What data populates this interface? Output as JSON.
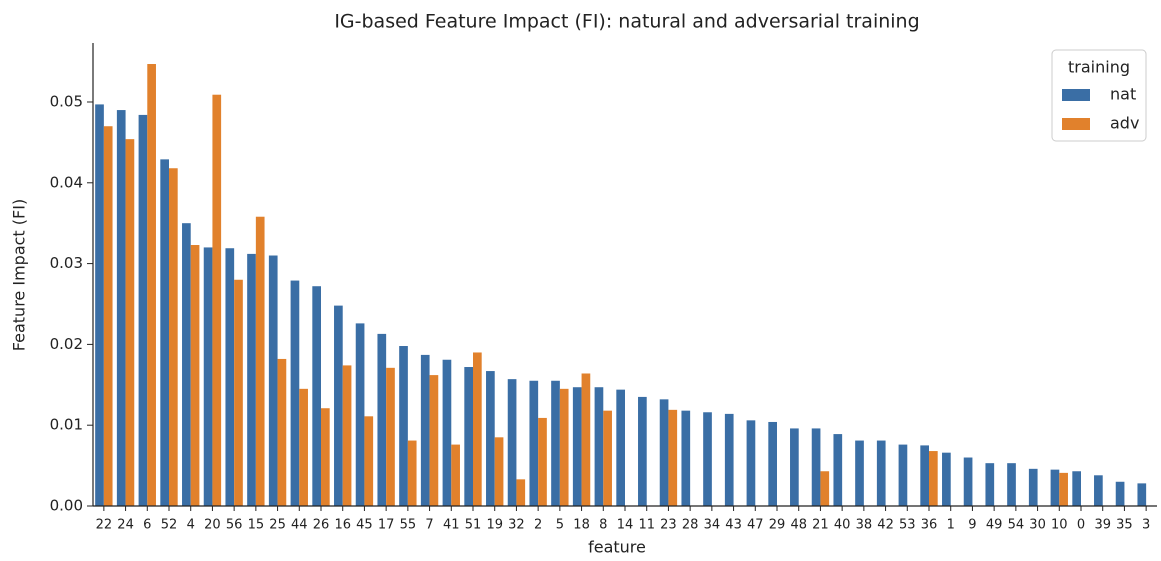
{
  "chart_data": {
    "type": "bar",
    "title": "IG-based Feature Impact (FI): natural and adversarial training",
    "x_label": "feature",
    "y_label": "Feature Impact (FI)",
    "legend_title": "training",
    "legend": "upper right",
    "categories": [
      "22",
      "24",
      "6",
      "52",
      "4",
      "20",
      "56",
      "15",
      "25",
      "44",
      "26",
      "16",
      "45",
      "17",
      "55",
      "7",
      "41",
      "51",
      "19",
      "32",
      "2",
      "5",
      "18",
      "8",
      "14",
      "11",
      "23",
      "28",
      "34",
      "43",
      "47",
      "29",
      "48",
      "21",
      "40",
      "38",
      "42",
      "53",
      "36",
      "1",
      "9",
      "49",
      "54",
      "30",
      "10",
      "0",
      "39",
      "35",
      "3"
    ],
    "series": [
      {
        "name": "nat",
        "color": "#3a6ea5",
        "values": [
          0.0497,
          0.049,
          0.0484,
          0.0429,
          0.035,
          0.032,
          0.0319,
          0.0312,
          0.031,
          0.0279,
          0.0272,
          0.0248,
          0.0226,
          0.0213,
          0.0198,
          0.0187,
          0.0181,
          0.0172,
          0.0167,
          0.0157,
          0.0155,
          0.0155,
          0.0147,
          0.0147,
          0.0144,
          0.0135,
          0.0132,
          0.0118,
          0.0116,
          0.0114,
          0.0106,
          0.0104,
          0.0096,
          0.0096,
          0.0089,
          0.0081,
          0.0081,
          0.0076,
          0.0075,
          0.0066,
          0.006,
          0.0053,
          0.0053,
          0.0046,
          0.0045,
          0.0043,
          0.0038,
          0.003,
          0.0028
        ]
      },
      {
        "name": "adv",
        "color": "#e1812c",
        "values": [
          0.047,
          0.0454,
          0.0547,
          0.0418,
          0.0323,
          0.0509,
          0.028,
          0.0358,
          0.0182,
          0.0145,
          0.0121,
          0.0174,
          0.0111,
          0.0171,
          0.0081,
          0.0162,
          0.0076,
          0.019,
          0.0085,
          0.0033,
          0.0109,
          0.0145,
          0.0164,
          0.0118,
          null,
          null,
          0.0119,
          null,
          null,
          null,
          null,
          null,
          null,
          0.0043,
          null,
          null,
          null,
          null,
          0.0068,
          null,
          null,
          null,
          null,
          null,
          0.0041,
          null,
          null,
          null,
          null
        ]
      }
    ],
    "ylim": [
      0,
      0.0573
    ],
    "yticks": [
      {
        "value": 0,
        "label": "0.00"
      },
      0.01,
      0.02,
      0.03,
      0.04,
      0.05
    ]
  }
}
